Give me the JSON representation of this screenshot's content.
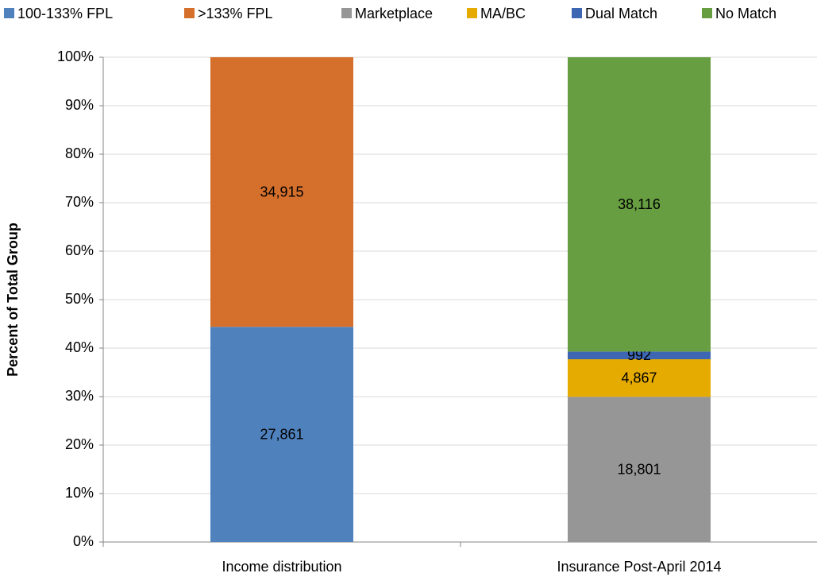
{
  "chart_data": {
    "type": "bar",
    "stacking": "percent",
    "y_axis_label": "Percent of Total  Group",
    "categories": [
      "Income distribution",
      "Insurance Post-April 2014"
    ],
    "series": [
      {
        "name": "100-133% FPL",
        "color": "#4f81bd",
        "values": [
          27861,
          null
        ],
        "value_labels": [
          "27,861",
          null
        ]
      },
      {
        "name": ">133% FPL",
        "color": "#d46f2c",
        "values": [
          34915,
          null
        ],
        "value_labels": [
          "34,915",
          null
        ]
      },
      {
        "name": "Marketplace",
        "color": "#969696",
        "values": [
          null,
          18801
        ],
        "value_labels": [
          null,
          "18,801"
        ]
      },
      {
        "name": "MA/BC",
        "color": "#e6ab00",
        "values": [
          null,
          4867
        ],
        "value_labels": [
          null,
          "4,867"
        ]
      },
      {
        "name": "Dual Match",
        "color": "#3d66b3",
        "values": [
          null,
          992
        ],
        "value_labels": [
          null,
          "992"
        ]
      },
      {
        "name": "No Match",
        "color": "#669e41",
        "values": [
          null,
          38116
        ],
        "value_labels": [
          null,
          "38,116"
        ]
      }
    ],
    "ylim": [
      0,
      100
    ],
    "yticks": [
      {
        "value": 0,
        "label": "0%"
      },
      {
        "value": 10,
        "label": "10%"
      },
      {
        "value": 20,
        "label": "20%"
      },
      {
        "value": 30,
        "label": "30%"
      },
      {
        "value": 40,
        "label": "40%"
      },
      {
        "value": 50,
        "label": "50%"
      },
      {
        "value": 60,
        "label": "60%"
      },
      {
        "value": 70,
        "label": "70%"
      },
      {
        "value": 80,
        "label": "80%"
      },
      {
        "value": 90,
        "label": "90%"
      },
      {
        "value": 100,
        "label": "100%"
      }
    ],
    "grid": true,
    "legend": "top"
  }
}
